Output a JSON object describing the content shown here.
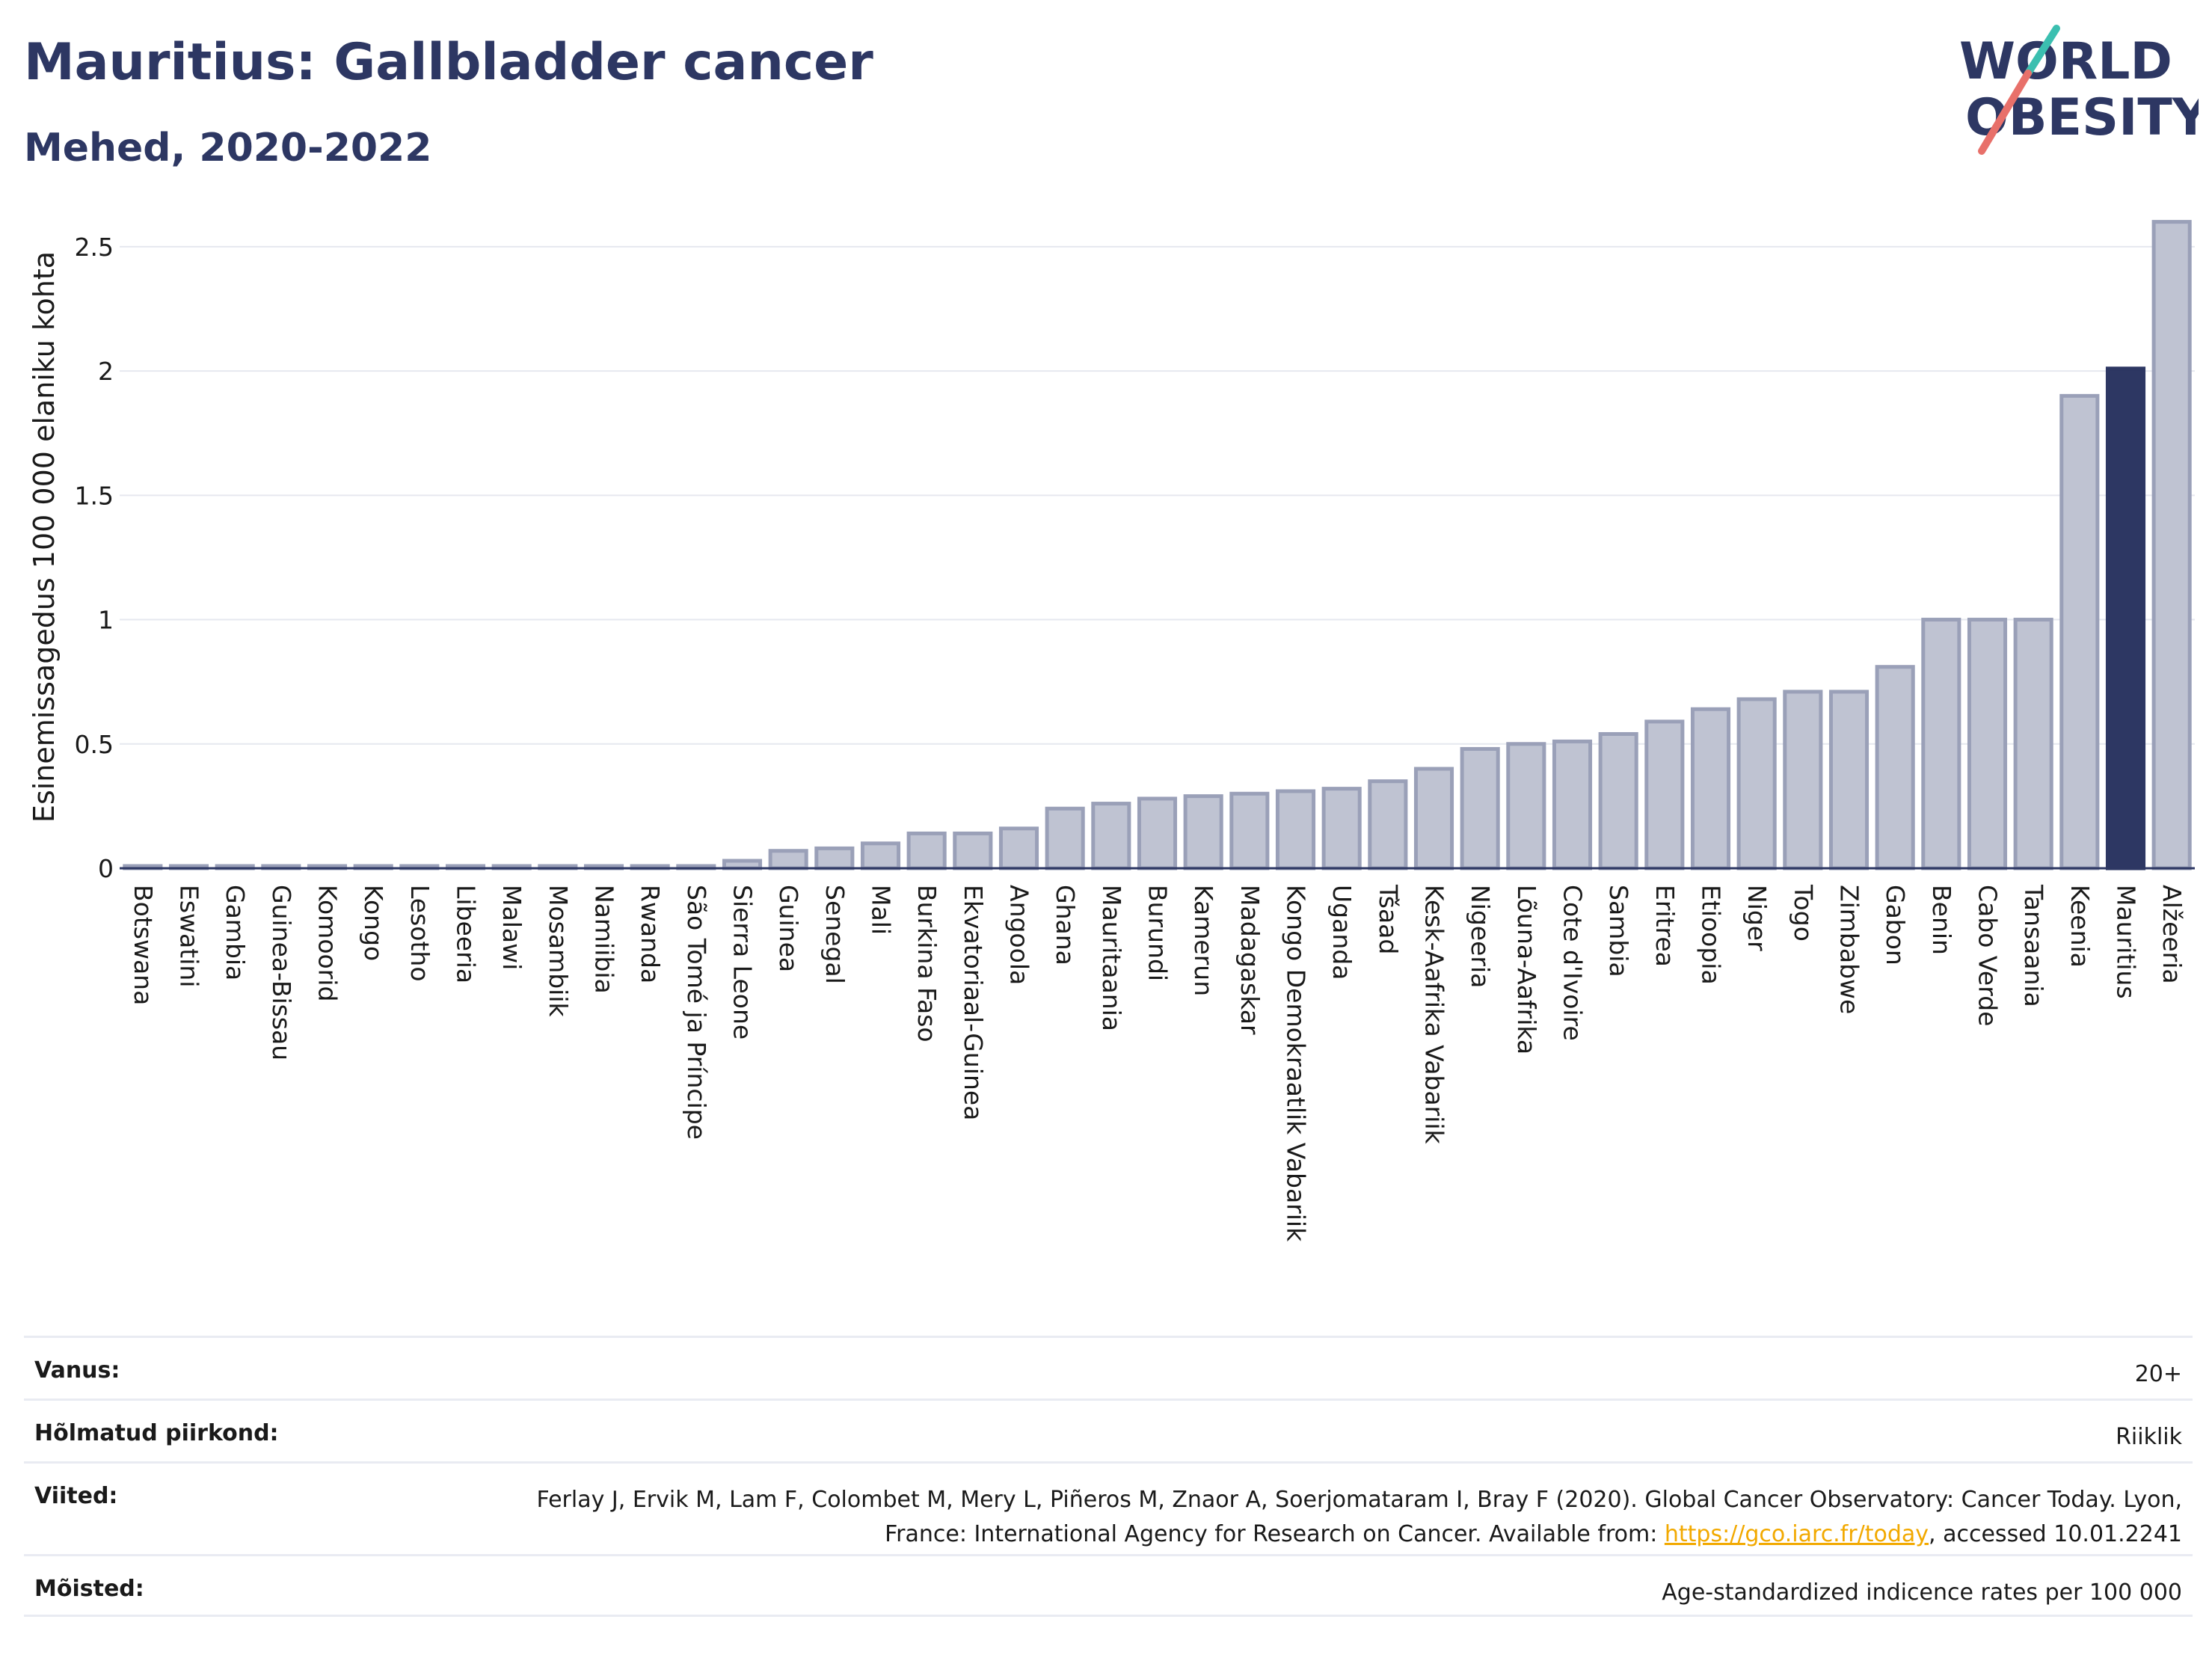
{
  "header": {
    "title": "Mauritius: Gallbladder cancer",
    "subtitle": "Mehed, 2020-2022"
  },
  "logo": {
    "line1": "WORLD",
    "line2": "OBESITY"
  },
  "colors": {
    "bar": "#bfc3d2",
    "bar_stroke": "#9aa0b8",
    "highlight": "#2d3763",
    "title": "#2d3763",
    "grid": "#e6e8ef",
    "link": "#f2a900"
  },
  "chart_data": {
    "type": "bar",
    "title": "Mauritius: Gallbladder cancer",
    "subtitle": "Mehed, 2020-2022",
    "xlabel": "",
    "ylabel": "Esinemissagedus 100 000 elaniku kohta",
    "ylim": [
      0,
      2.65
    ],
    "yticks": [
      0,
      0.5,
      1,
      1.5,
      2,
      2.5
    ],
    "ytick_labels": [
      "0",
      "0.5",
      "1",
      "1.5",
      "2",
      "2.5"
    ],
    "grid": true,
    "highlight": "Mauritius",
    "categories": [
      "Botswana",
      "Eswatini",
      "Gambia",
      "Guinea-Bissau",
      "Komoorid",
      "Kongo",
      "Lesotho",
      "Libeeria",
      "Malawi",
      "Mosambiik",
      "Namiibia",
      "Rwanda",
      "São Tomé ja Príncipe",
      "Sierra Leone",
      "Guinea",
      "Senegal",
      "Mali",
      "Burkina Faso",
      "Ekvatoriaal-Guinea",
      "Angoola",
      "Ghana",
      "Mauritaania",
      "Burundi",
      "Kamerun",
      "Madagaskar",
      "Kongo Demokraatlik Vabariik",
      "Uganda",
      "Tšaad",
      "Kesk-Aafrika Vabariik",
      "Nigeeria",
      "Lõuna-Aafrika",
      "Cote d'Ivoire",
      "Sambia",
      "Eritrea",
      "Etioopia",
      "Niger",
      "Togo",
      "Zimbabwe",
      "Gabon",
      "Benin",
      "Cabo Verde",
      "Tansaania",
      "Keenia",
      "Mauritius",
      "Alžeeria"
    ],
    "values": [
      0,
      0,
      0,
      0,
      0,
      0,
      0,
      0,
      0,
      0,
      0,
      0,
      0,
      0.03,
      0.07,
      0.08,
      0.1,
      0.14,
      0.14,
      0.16,
      0.24,
      0.26,
      0.28,
      0.29,
      0.3,
      0.31,
      0.32,
      0.35,
      0.4,
      0.48,
      0.5,
      0.51,
      0.54,
      0.59,
      0.64,
      0.68,
      0.71,
      0.71,
      0.81,
      1.0,
      1.0,
      1.0,
      1.9,
      2.01,
      2.6
    ]
  },
  "info": [
    {
      "key": "Vanus:",
      "value": "20+"
    },
    {
      "key": "Hõlmatud piirkond:",
      "value": "Riiklik"
    },
    {
      "key": "Viited:",
      "value_pre": "Ferlay J, Ervik M, Lam F, Colombet M, Mery L, Piñeros M, Znaor A, Soerjomataram I, Bray F (2020). Global Cancer Observatory: Cancer Today. Lyon, France: International Agency for Research on Cancer. Available from: ",
      "link": "https://gco.iarc.fr/today",
      "value_post": ", accessed 10.01.2241"
    },
    {
      "key": "Mõisted:",
      "value": "Age-standardized indicence rates per 100 000"
    }
  ]
}
